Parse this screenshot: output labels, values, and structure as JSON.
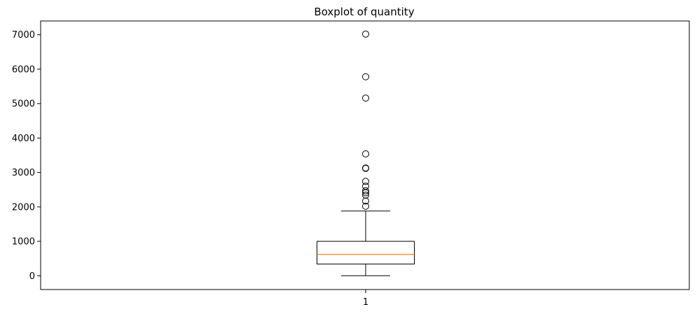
{
  "chart_data": {
    "type": "boxplot",
    "title": "Boxplot of quantity",
    "xlabel": "",
    "ylabel": "",
    "categories": [
      "1"
    ],
    "ylim": [
      -400,
      7400
    ],
    "yticks": [
      0,
      1000,
      2000,
      3000,
      4000,
      5000,
      6000,
      7000
    ],
    "ytick_labels": [
      "0",
      "1000",
      "2000",
      "3000",
      "4000",
      "5000",
      "6000",
      "7000"
    ],
    "grid": false,
    "boxes": [
      {
        "category": "1",
        "whisker_low": 0,
        "q1": 340,
        "median": 620,
        "q3": 1000,
        "whisker_high": 1880,
        "outliers": [
          2020,
          2170,
          2340,
          2410,
          2470,
          2600,
          2740,
          3120,
          3130,
          3540,
          5160,
          5780,
          7020
        ]
      }
    ],
    "colors": {
      "box": "#000000",
      "median": "#ff7f0e",
      "outlier": "#000000"
    }
  }
}
